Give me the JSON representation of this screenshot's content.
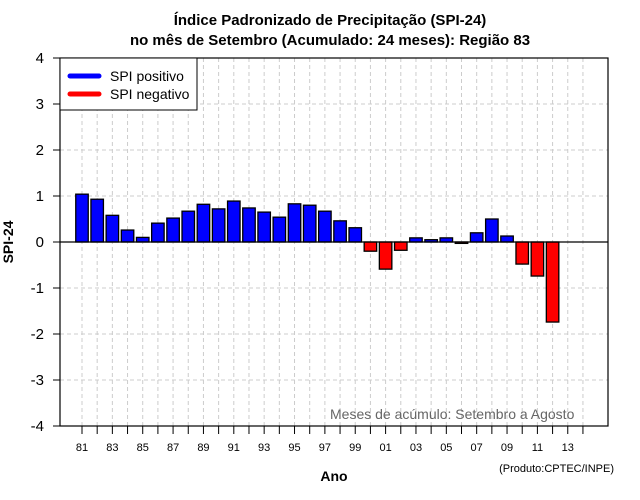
{
  "chart_data": {
    "type": "bar",
    "title": "Índice Padronizado de Precipitação (SPI-24)",
    "subtitle": "no mês de Setembro (Acumulado: 24 meses): Região 83",
    "xlabel": "Ano",
    "ylabel": "SPI-24",
    "ylim": [
      -4,
      4
    ],
    "yticks": [
      "4",
      "3",
      "2",
      "1",
      "0",
      "-1",
      "-2",
      "-3",
      "-4"
    ],
    "ytick_values": [
      4,
      3,
      2,
      1,
      0,
      -1,
      -2,
      -3,
      -4
    ],
    "xtick_labels": [
      "81",
      "83",
      "85",
      "87",
      "89",
      "91",
      "93",
      "95",
      "97",
      "99",
      "01",
      "03",
      "05",
      "07",
      "09",
      "11",
      "13"
    ],
    "grid": true,
    "legend": {
      "placement": "top-left",
      "entries": [
        {
          "label": "SPI positivo",
          "color": "#0000ff"
        },
        {
          "label": "SPI negativo",
          "color": "#ff0000"
        }
      ]
    },
    "colors": {
      "positive": "#0000ff",
      "negative": "#ff0000"
    },
    "categories": [
      "1981",
      "1982",
      "1983",
      "1984",
      "1985",
      "1986",
      "1987",
      "1988",
      "1989",
      "1990",
      "1991",
      "1992",
      "1993",
      "1994",
      "1995",
      "1996",
      "1997",
      "1998",
      "1999",
      "2000",
      "2001",
      "2002",
      "2003",
      "2004",
      "2005",
      "2006",
      "2007",
      "2008",
      "2009",
      "2010",
      "2011",
      "2012",
      "2013",
      "2014"
    ],
    "values": [
      1.04,
      0.93,
      0.58,
      0.26,
      0.1,
      0.41,
      0.52,
      0.67,
      0.82,
      0.72,
      0.89,
      0.74,
      0.65,
      0.54,
      0.83,
      0.8,
      0.67,
      0.46,
      0.31,
      -0.2,
      -0.59,
      -0.18,
      0.09,
      0.05,
      0.09,
      -0.03,
      0.2,
      0.5,
      0.13,
      -0.48,
      -0.74,
      -1.74,
      null,
      null
    ],
    "annotation": "Meses de acúmulo: Setembro a Agosto",
    "credit": "(Produto:CPTEC/INPE)"
  }
}
